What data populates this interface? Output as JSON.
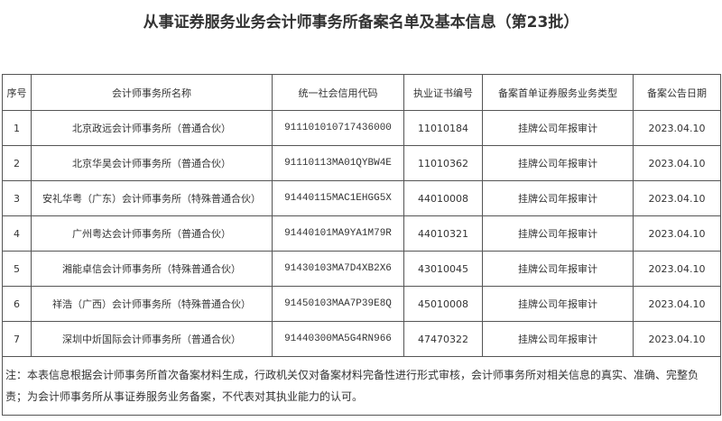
{
  "title": "从事证券服务业务会计师事务所备案名单及基本信息（第23批）",
  "headers": [
    "序号",
    "会计师事务所名称",
    "统一社会信用代码",
    "执业证书编号",
    "备案首单证券服务业务类型",
    "备案公告日期"
  ],
  "rows": [
    [
      "1",
      "北京政远会计师事务所（普通合伙）",
      "911101010717436000",
      "11010184",
      "挂牌公司年报审计",
      "2023.04.10"
    ],
    [
      "2",
      "北京华昊会计师事务所（普通合伙）",
      "91110113MA01QYBW4E",
      "11010362",
      "挂牌公司年报审计",
      "2023.04.10"
    ],
    [
      "3",
      "安礼华粤（广东）会计师事务所（特殊普通合伙）",
      "91440115MAC1EHGG5X",
      "44010008",
      "挂牌公司年报审计",
      "2023.04.10"
    ],
    [
      "4",
      "广州粤达会计师事务所（普通合伙）",
      "91440101MA9YA1M79R",
      "44010321",
      "挂牌公司年报审计",
      "2023.04.10"
    ],
    [
      "5",
      "湘能卓信会计师事务所（特殊普通合伙）",
      "91430103MA7D4XB2X6",
      "43010045",
      "挂牌公司年报审计",
      "2023.04.10"
    ],
    [
      "6",
      "祥浩（广西）会计师事务所（特殊普通合伙）",
      "91450103MAA7P39E8Q",
      "45010008",
      "挂牌公司年报审计",
      "2023.04.10"
    ],
    [
      "7",
      "深圳中炘国际会计师事务所（普通合伙）",
      "91440300MA5G4RN966",
      "47470322",
      "挂牌公司年报审计",
      "2023.04.10"
    ]
  ],
  "note": "注：本表信息根据会计师事务所首次备案材料生成，行政机关仅对备案材料完备性进行形式审核，会计师事务所对相关信息的真实、准确、完整负责；为会计师事务所从事证券服务业务备案，不代表对其执业能力的认可。"
}
